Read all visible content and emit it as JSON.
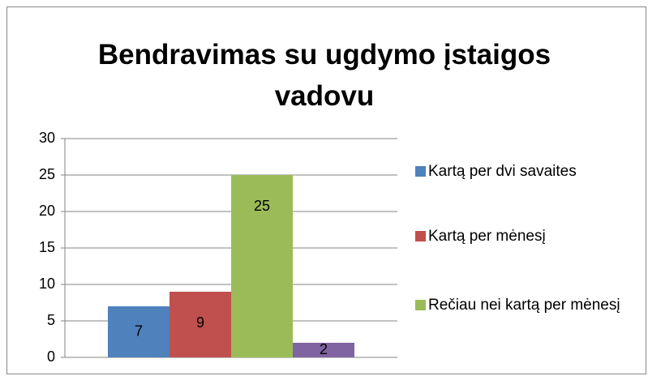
{
  "chart_data": {
    "type": "bar",
    "title": "Bendravimas su ugdymo įstaigos vadovu",
    "categories": [
      null
    ],
    "series": [
      {
        "name": "Kartą per dvi savaites",
        "color": "#4f81bd",
        "values": [
          7
        ]
      },
      {
        "name": "Kartą per mėnesį",
        "color": "#c0504d",
        "values": [
          9
        ]
      },
      {
        "name": "Rečiau nei kartą per mėnesį",
        "color": "#9bbb59",
        "values": [
          25
        ]
      },
      {
        "color": "#8064a2",
        "values": [
          2
        ]
      }
    ],
    "ylim": [
      0,
      30
    ],
    "yticks": [
      0,
      5,
      10,
      15,
      20,
      25,
      30
    ],
    "grid": true,
    "legend": "right"
  }
}
